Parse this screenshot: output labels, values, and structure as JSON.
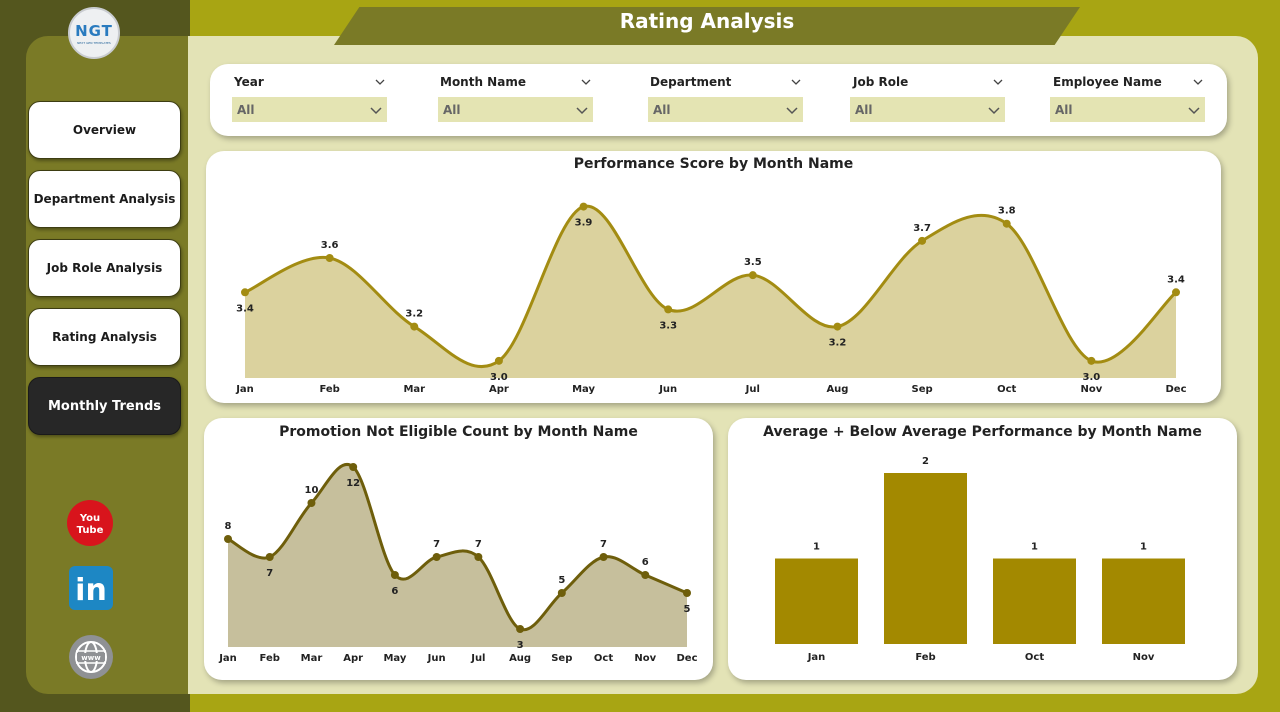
{
  "app": {
    "title": "Rating Analysis",
    "logo_text": "NGT",
    "logo_subtitle": "NEXT GEN TEMPLATES"
  },
  "nav": {
    "items": [
      {
        "label": "Overview",
        "active": false
      },
      {
        "label": "Department Analysis",
        "active": false
      },
      {
        "label": "Job Role Analysis",
        "active": false
      },
      {
        "label": "Rating Analysis",
        "active": false
      },
      {
        "label": "Monthly Trends",
        "active": true
      }
    ]
  },
  "social": {
    "youtube_line1": "You",
    "youtube_line2": "Tube",
    "linkedin": "in",
    "web": "www"
  },
  "filters": [
    {
      "label": "Year",
      "value": "All"
    },
    {
      "label": "Month Name",
      "value": "All"
    },
    {
      "label": "Department",
      "value": "All"
    },
    {
      "label": "Job Role",
      "value": "All"
    },
    {
      "label": "Employee Name",
      "value": "All"
    }
  ],
  "colors": {
    "sidebar_dark": "#54561e",
    "sidebar": "#7a7a26",
    "background": "#a8a513",
    "content_bg": "#e3e3b6",
    "line_gold": "#a38c12",
    "fill_gold": "#dbd29e",
    "line_brown": "#6e5e0b",
    "fill_brown": "#c6bf9c",
    "bar_gold": "#a38900"
  },
  "chart_data": [
    {
      "type": "area",
      "title": "Performance Score by Month Name",
      "categories": [
        "Jan",
        "Feb",
        "Mar",
        "Apr",
        "May",
        "Jun",
        "Jul",
        "Aug",
        "Sep",
        "Oct",
        "Nov",
        "Dec"
      ],
      "values": [
        3.4,
        3.6,
        3.2,
        3.0,
        3.9,
        3.3,
        3.5,
        3.2,
        3.7,
        3.8,
        3.0,
        3.4
      ],
      "ylim": [
        2.9,
        3.95
      ],
      "grid": false
    },
    {
      "type": "area",
      "title": "Promotion Not Eligible Count by Month Name",
      "categories": [
        "Jan",
        "Feb",
        "Mar",
        "Apr",
        "May",
        "Jun",
        "Jul",
        "Aug",
        "Sep",
        "Oct",
        "Nov",
        "Dec"
      ],
      "values": [
        8,
        7,
        10,
        12,
        6,
        7,
        7,
        3,
        5,
        7,
        6,
        5
      ],
      "ylim": [
        2,
        12.5
      ],
      "grid": false
    },
    {
      "type": "bar",
      "title": "Average + Below Average Performance by Month Name",
      "categories": [
        "Jan",
        "Feb",
        "Oct",
        "Nov"
      ],
      "values": [
        1,
        2,
        1,
        1
      ],
      "ylim": [
        0,
        2
      ],
      "grid": false
    }
  ]
}
